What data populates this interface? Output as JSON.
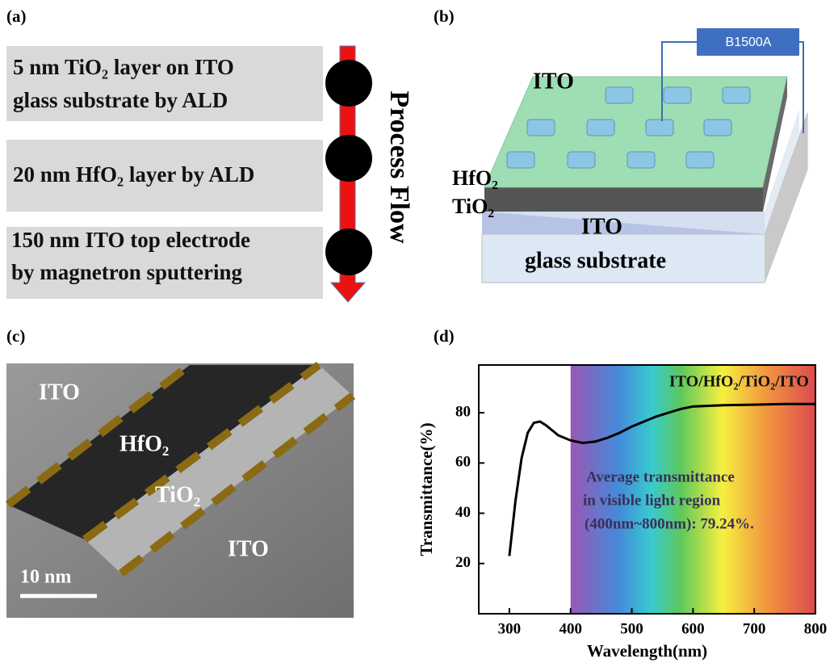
{
  "panel_a": {
    "label": "(a)",
    "steps": [
      [
        "5 nm TiO₂ layer on ITO",
        "glass substrate by ALD"
      ],
      [
        "20 nm HfO₂ layer by ALD"
      ],
      [
        "150 nm  ITO top electrode",
        "by magnetron sputtering"
      ]
    ],
    "arrow_label": "Process Flow"
  },
  "panel_b": {
    "label": "(b)",
    "instrument": "B1500A",
    "top_electrode": "ITO",
    "layer_hfo2": "HfO₂",
    "layer_tio2": "TiO₂",
    "bottom_electrode": "ITO",
    "substrate": "glass substrate"
  },
  "panel_c": {
    "label": "(c)",
    "regions": [
      "ITO",
      "HfO₂",
      "TiO₂",
      "ITO"
    ],
    "scale_bar": "10 nm"
  },
  "chart_data": {
    "type": "line",
    "label": "(d)",
    "x_label": "Wavelength(nm)",
    "y_label": "Transmittance(%)",
    "annotations": [
      "Average transmittance",
      "in visible light region",
      "(400nm~800nm): 79.24%."
    ],
    "x": [
      300,
      310,
      320,
      330,
      340,
      350,
      360,
      380,
      400,
      420,
      440,
      460,
      480,
      500,
      520,
      540,
      560,
      580,
      600,
      650,
      700,
      750,
      800
    ],
    "series": [
      {
        "name": "ITO/HfO₂/TiO₂/ITO",
        "color": "#000000",
        "values": [
          23,
          45,
          62,
          72,
          76,
          76.5,
          75,
          71,
          69,
          68,
          68.5,
          70,
          72,
          74.5,
          76.5,
          78.5,
          80,
          81.5,
          82.5,
          83,
          83.2,
          83.5,
          83.5
        ]
      }
    ],
    "shaded_region": [
      400,
      800
    ],
    "xlim": [
      250,
      800
    ],
    "ylim": [
      0,
      99
    ],
    "xticks": [
      300,
      400,
      500,
      600,
      700,
      800
    ],
    "yticks": [
      20,
      40,
      60,
      80
    ],
    "grid": false
  }
}
